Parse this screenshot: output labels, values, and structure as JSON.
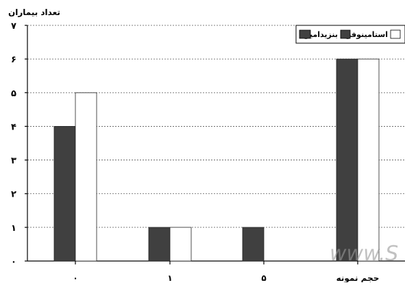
{
  "chart_data": {
    "type": "bar",
    "ylabel": "تعداد بیماران",
    "ylim": [
      0,
      7
    ],
    "y_ticks": [
      {
        "value": 0,
        "label": "۰"
      },
      {
        "value": 1,
        "label": "۱"
      },
      {
        "value": 2,
        "label": "۲"
      },
      {
        "value": 3,
        "label": "۳"
      },
      {
        "value": 4,
        "label": "۴"
      },
      {
        "value": 5,
        "label": "۵"
      },
      {
        "value": 6,
        "label": "۶"
      },
      {
        "value": 7,
        "label": "۷"
      }
    ],
    "categories": [
      "۰",
      "۱",
      "۵",
      "حجم نمونه"
    ],
    "series": [
      {
        "name": "بنزیدامین",
        "color": "#404040",
        "values": [
          4,
          1,
          1,
          6
        ]
      },
      {
        "name": "استامینوفن",
        "color": "#ffffff",
        "values": [
          5,
          1,
          0,
          6
        ]
      }
    ],
    "grid": "horizontal-dashed",
    "legend_position": "top-right"
  },
  "watermark": "www.S"
}
